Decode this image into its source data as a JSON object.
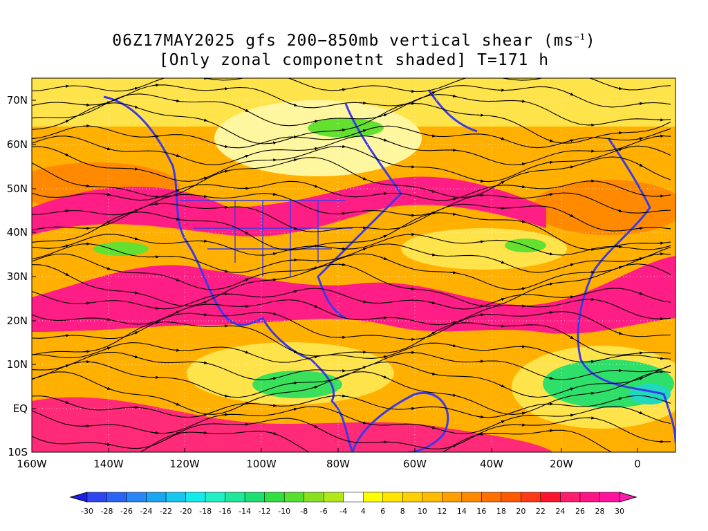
{
  "title": {
    "line1_text": "06Z17MAY2025 gfs 200−850mb vertical shear (ms",
    "line1_exp": "−1",
    "line1_close": ")",
    "line2": "[Only zonal componetnt shaded] T=171 h"
  },
  "lat_labels": [
    "70N",
    "60N",
    "50N",
    "40N",
    "30N",
    "20N",
    "10N",
    "EQ",
    "10S"
  ],
  "lon_labels": [
    "160W",
    "140W",
    "120W",
    "100W",
    "80W",
    "60W",
    "40W",
    "20W",
    "0"
  ],
  "colorbar": {
    "labels": [
      "-30",
      "-28",
      "-26",
      "-24",
      "-22",
      "-20",
      "-18",
      "-16",
      "-14",
      "-12",
      "-10",
      "-8",
      "-6",
      "-4",
      "4",
      "6",
      "8",
      "10",
      "12",
      "14",
      "16",
      "18",
      "20",
      "22",
      "24",
      "26",
      "28",
      "30"
    ],
    "colors": [
      "#1e1ee8",
      "#2d47f0",
      "#2a64f5",
      "#2a86f5",
      "#1ba6f2",
      "#14c8f0",
      "#13ecec",
      "#20f0c4",
      "#1fe89a",
      "#1ee070",
      "#30e040",
      "#58e030",
      "#88e020",
      "#b0e818",
      "#ffffff",
      "#ffff00",
      "#ffe600",
      "#ffd000",
      "#ffbb00",
      "#ffa000",
      "#ff8a00",
      "#ff7000",
      "#ff5a00",
      "#ff3a14",
      "#ff1430",
      "#ff1e6e",
      "#ff1488",
      "#ff14a0",
      "#ff1ab4"
    ]
  }
}
